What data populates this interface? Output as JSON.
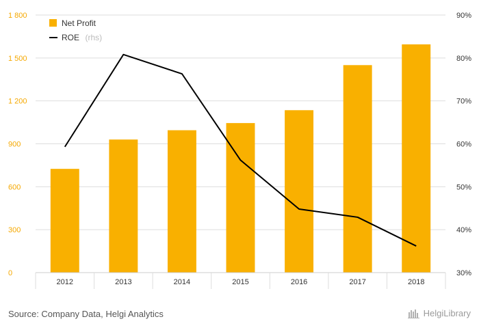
{
  "colors": {
    "bar": "#f9b000",
    "line": "#000000",
    "left_axis_text": "#f5a800",
    "grid": "#dddddd"
  },
  "legend": {
    "bar_label": "Net Profit",
    "line_label": "ROE",
    "line_suffix": "(rhs)"
  },
  "footer": {
    "source": "Source: Company Data, Helgi Analytics",
    "logo_text": "HelgiLibrary"
  },
  "chart_data": {
    "type": "bar",
    "categories": [
      "2012",
      "2013",
      "2014",
      "2015",
      "2016",
      "2017",
      "2018"
    ],
    "series": [
      {
        "name": "Net Profit",
        "type": "bar",
        "axis": "left",
        "values": [
          725,
          930,
          995,
          1045,
          1135,
          1450,
          1595
        ]
      },
      {
        "name": "ROE",
        "type": "line",
        "axis": "right",
        "values": [
          59.3,
          80.8,
          76.3,
          56.2,
          44.8,
          42.9,
          36.2
        ]
      }
    ],
    "y_left": {
      "min": 0,
      "max": 1800,
      "ticks": [
        0,
        300,
        600,
        900,
        1200,
        1500,
        1800
      ],
      "tick_labels": [
        "0",
        "300",
        "600",
        "900",
        "1 200",
        "1 500",
        "1 800"
      ]
    },
    "y_right": {
      "min": 30,
      "max": 90,
      "ticks": [
        30,
        40,
        50,
        60,
        70,
        80,
        90
      ],
      "tick_labels": [
        "30%",
        "40%",
        "50%",
        "60%",
        "70%",
        "80%",
        "90%"
      ]
    },
    "grid": true,
    "legend_position": "top-left"
  }
}
